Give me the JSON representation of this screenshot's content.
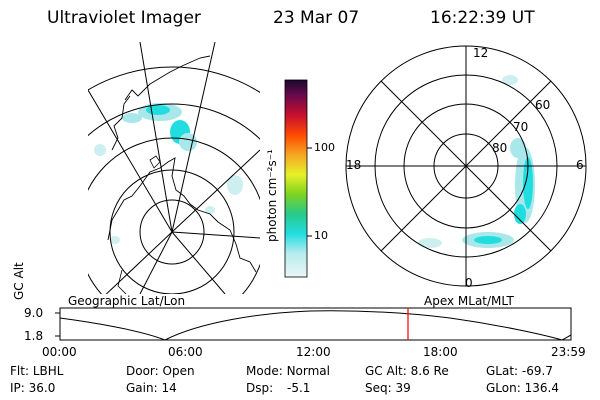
{
  "header": {
    "title": "Ultraviolet Imager",
    "date": "23 Mar 07",
    "time": "16:22:39 UT"
  },
  "colorbar": {
    "label": "photon cm⁻²s⁻¹",
    "ticks": [
      "100",
      "10"
    ]
  },
  "polar_plot": {
    "mlt_labels": [
      "12",
      "18",
      "6",
      "0"
    ],
    "lat_labels": [
      "60",
      "70",
      "80"
    ]
  },
  "panel_labels": {
    "left": "Geographic Lat/Lon",
    "right": "Apex MLat/MLT"
  },
  "altitude_strip": {
    "ylabel": "GC Alt",
    "y_ticks": [
      "9.0",
      "1.8"
    ],
    "x_ticks": [
      "00:00",
      "06:00",
      "12:00",
      "18:00",
      "23:59"
    ],
    "current_time": "16:22:39"
  },
  "info": {
    "row1": [
      {
        "key": "Flt:",
        "value": "LBHL"
      },
      {
        "key": "Door:",
        "value": "Open"
      },
      {
        "key": "Mode:",
        "value": "Normal"
      },
      {
        "key": "GC Alt:",
        "value": "8.6 Re"
      },
      {
        "key": "GLat:",
        "value": "-69.7"
      }
    ],
    "row2": [
      {
        "key": "IP:",
        "value": "36.0"
      },
      {
        "key": "Gain:",
        "value": "14"
      },
      {
        "key": "Dsp:",
        "value": "-5.1"
      },
      {
        "key": "Seq:",
        "value": "39"
      },
      {
        "key": "GLon:",
        "value": "136.4"
      }
    ]
  },
  "colors": {
    "accent": "#ff0000",
    "aurora_light": "#a8e8ea",
    "aurora_strong": "#22dde0"
  }
}
